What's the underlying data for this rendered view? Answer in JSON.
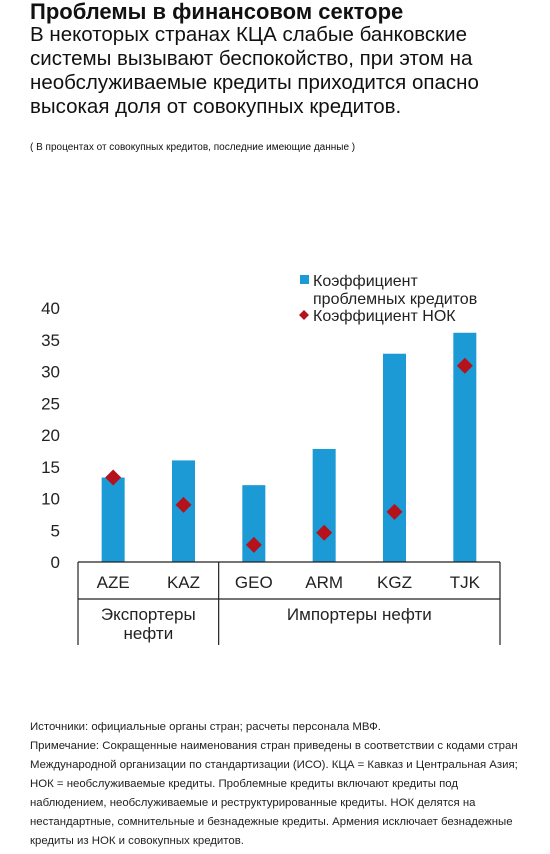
{
  "header": {
    "title": "Проблемы в финансовом секторе",
    "subtitle": "В некоторых странах КЦА слабые банковские системы вызывают беспокойство, при этом на необслуживаемые кредиты приходится опасно высокая доля от совокупных кредитов.",
    "unit_note": "( В процентах от совокупных кредитов, последние имеющие данные )"
  },
  "chart_data": {
    "type": "bar",
    "categories": [
      "AZE",
      "KAZ",
      "GEO",
      "ARM",
      "KGZ",
      "TJK"
    ],
    "groups": [
      {
        "label": "Экспортеры нефти",
        "categories": [
          "AZE",
          "KAZ"
        ]
      },
      {
        "label": "Импортеры нефти",
        "categories": [
          "GEO",
          "ARM",
          "KGZ",
          "TJK"
        ]
      }
    ],
    "series": [
      {
        "name": "Коэффициент проблемных кредитов",
        "mark": "bar",
        "color": "#1b9ad6",
        "values": [
          13.3,
          16.0,
          12.1,
          17.8,
          32.8,
          36.1
        ]
      },
      {
        "name": "Коэффициент НОК",
        "mark": "diamond",
        "color": "#b5121b",
        "values": [
          13.3,
          9.0,
          2.7,
          4.6,
          7.9,
          30.9
        ]
      }
    ],
    "yticks": [
      0,
      5,
      10,
      15,
      20,
      25,
      30,
      35,
      40
    ],
    "ylim": [
      0,
      40
    ],
    "legend_placement": "top-right",
    "grid": false
  },
  "footnotes": {
    "sources": "Источники: официальные органы стран; расчеты персонала МВФ.",
    "note": "Примечание: Сокращенные наименования стран приведены в соответствии с кодами стран Международной организации по стандартизации (ИСО). КЦА = Кавказ и Центральная Азия; НОК = необслуживаемые кредиты. Проблемные кредиты включают кредиты под наблюдением, необслуживаемые и реструктурированные кредиты. НОК делятся на нестандартные, сомнительные и безнадежные кредиты. Армения исключает безнадежные кредиты из НОК и совокупных кредитов."
  }
}
